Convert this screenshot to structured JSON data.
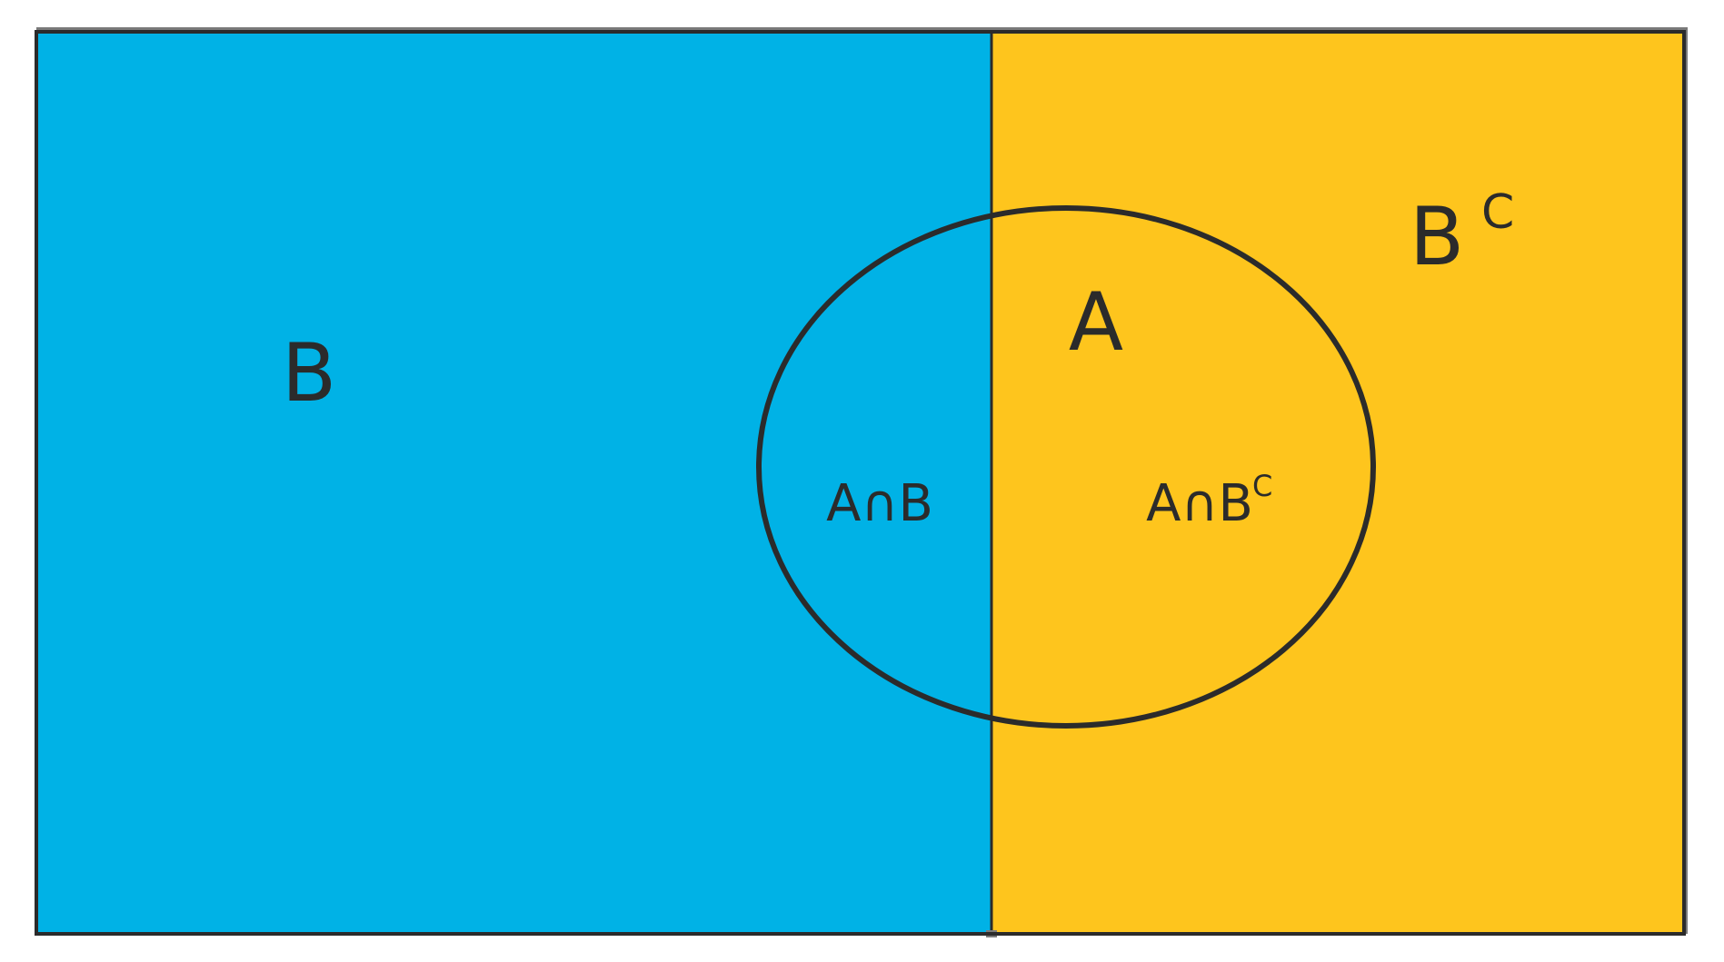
{
  "diagram": {
    "regions": {
      "left": {
        "label": "B",
        "color": "#00b2e6"
      },
      "right": {
        "label": "B",
        "superscript": "C",
        "color": "#fec51d"
      }
    },
    "set_a": {
      "label": "A"
    },
    "intersections": {
      "a_and_b": "A∩B",
      "a_and_b_complement": {
        "base": "A∩B",
        "superscript": "C"
      }
    },
    "stroke_color": "#2b2b2b"
  }
}
